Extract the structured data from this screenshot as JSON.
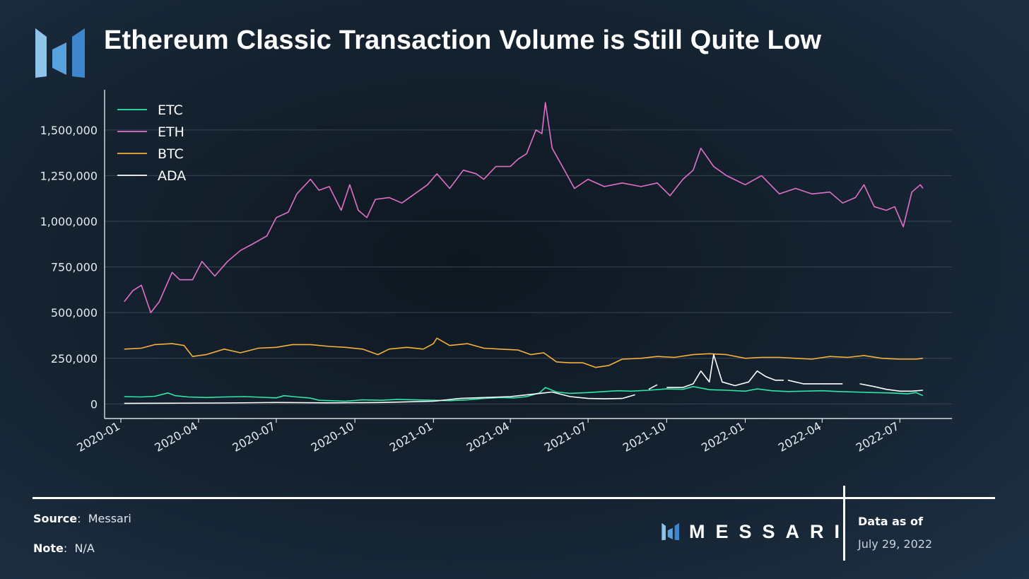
{
  "header": {
    "title": "Ethereum Classic Transaction Volume is Still Quite Low"
  },
  "chart_data": {
    "type": "line",
    "title": "Ethereum Classic Transaction Volume is Still Quite Low",
    "xlabel": "",
    "ylabel": "",
    "ylim": [
      -80000,
      1720000
    ],
    "xlim": [
      "2019-12-13",
      "2022-08-31"
    ],
    "grid": "horizontal",
    "legend_position": "top-left",
    "x_tick_labels": [
      "2020-01",
      "2020-04",
      "2020-07",
      "2020-10",
      "2021-01",
      "2021-04",
      "2021-07",
      "2021-10",
      "2022-01",
      "2022-04",
      "2022-07"
    ],
    "y_tick_values": [
      0,
      250000,
      500000,
      750000,
      1000000,
      1250000,
      1500000
    ],
    "y_tick_labels": [
      "0",
      "250,000",
      "500,000",
      "750,000",
      "1,000,000",
      "1,250,000",
      "1,500,000"
    ],
    "series": [
      {
        "name": "ETC",
        "color": "#2ee8a8",
        "x": [
          "2020-01-05",
          "2020-01-25",
          "2020-02-10",
          "2020-02-25",
          "2020-03-05",
          "2020-03-20",
          "2020-04-10",
          "2020-05-01",
          "2020-05-25",
          "2020-06-15",
          "2020-07-01",
          "2020-07-10",
          "2020-07-25",
          "2020-08-10",
          "2020-08-20",
          "2020-09-01",
          "2020-09-20",
          "2020-10-10",
          "2020-11-01",
          "2020-11-20",
          "2020-12-10",
          "2021-01-01",
          "2021-01-20",
          "2021-02-10",
          "2021-03-01",
          "2021-03-20",
          "2021-04-05",
          "2021-04-20",
          "2021-05-05",
          "2021-05-12",
          "2021-05-25",
          "2021-06-10",
          "2021-07-01",
          "2021-07-20",
          "2021-08-05",
          "2021-08-20",
          "2021-09-10",
          "2021-10-01",
          "2021-10-20",
          "2021-11-01",
          "2021-11-20",
          "2021-12-10",
          "2022-01-01",
          "2022-01-15",
          "2022-02-01",
          "2022-02-20",
          "2022-03-10",
          "2022-04-01",
          "2022-04-20",
          "2022-05-10",
          "2022-06-01",
          "2022-06-20",
          "2022-07-10",
          "2022-07-20",
          "2022-07-28"
        ],
        "values": [
          40000,
          38000,
          42000,
          60000,
          45000,
          38000,
          35000,
          38000,
          40000,
          36000,
          33000,
          45000,
          38000,
          32000,
          20000,
          18000,
          15000,
          22000,
          20000,
          25000,
          22000,
          20000,
          18000,
          22000,
          30000,
          35000,
          33000,
          40000,
          60000,
          90000,
          65000,
          58000,
          62000,
          68000,
          72000,
          70000,
          75000,
          82000,
          80000,
          95000,
          78000,
          75000,
          70000,
          82000,
          72000,
          68000,
          70000,
          72000,
          68000,
          65000,
          62000,
          60000,
          55000,
          62000,
          45000
        ]
      },
      {
        "name": "ETH",
        "color": "#e070c8",
        "x": [
          "2020-01-05",
          "2020-01-15",
          "2020-01-25",
          "2020-02-05",
          "2020-02-15",
          "2020-03-01",
          "2020-03-10",
          "2020-03-25",
          "2020-04-05",
          "2020-04-20",
          "2020-05-05",
          "2020-05-20",
          "2020-06-05",
          "2020-06-20",
          "2020-07-01",
          "2020-07-15",
          "2020-07-25",
          "2020-08-10",
          "2020-08-20",
          "2020-09-01",
          "2020-09-15",
          "2020-09-25",
          "2020-10-05",
          "2020-10-15",
          "2020-10-25",
          "2020-11-10",
          "2020-11-25",
          "2020-12-10",
          "2020-12-25",
          "2021-01-05",
          "2021-01-20",
          "2021-02-05",
          "2021-02-20",
          "2021-03-01",
          "2021-03-15",
          "2021-04-01",
          "2021-04-10",
          "2021-04-20",
          "2021-05-01",
          "2021-05-08",
          "2021-05-12",
          "2021-05-20",
          "2021-06-01",
          "2021-06-15",
          "2021-07-01",
          "2021-07-20",
          "2021-08-10",
          "2021-09-01",
          "2021-09-20",
          "2021-10-05",
          "2021-10-20",
          "2021-11-01",
          "2021-11-10",
          "2021-11-25",
          "2021-12-10",
          "2022-01-01",
          "2022-01-20",
          "2022-02-10",
          "2022-03-01",
          "2022-03-20",
          "2022-04-10",
          "2022-04-25",
          "2022-05-10",
          "2022-05-20",
          "2022-06-01",
          "2022-06-15",
          "2022-06-25",
          "2022-07-05",
          "2022-07-15",
          "2022-07-25",
          "2022-07-28"
        ],
        "values": [
          560000,
          620000,
          650000,
          500000,
          560000,
          720000,
          680000,
          680000,
          780000,
          700000,
          780000,
          840000,
          880000,
          920000,
          1020000,
          1050000,
          1150000,
          1230000,
          1170000,
          1190000,
          1060000,
          1200000,
          1060000,
          1020000,
          1120000,
          1130000,
          1100000,
          1150000,
          1200000,
          1260000,
          1180000,
          1280000,
          1260000,
          1230000,
          1300000,
          1300000,
          1340000,
          1370000,
          1500000,
          1480000,
          1650000,
          1400000,
          1300000,
          1180000,
          1230000,
          1190000,
          1210000,
          1190000,
          1210000,
          1140000,
          1230000,
          1280000,
          1400000,
          1300000,
          1250000,
          1200000,
          1250000,
          1150000,
          1180000,
          1150000,
          1160000,
          1100000,
          1130000,
          1200000,
          1080000,
          1060000,
          1080000,
          970000,
          1160000,
          1200000,
          1180000
        ]
      },
      {
        "name": "BTC",
        "color": "#f6b13a",
        "x": [
          "2020-01-05",
          "2020-01-25",
          "2020-02-10",
          "2020-03-01",
          "2020-03-15",
          "2020-03-25",
          "2020-04-10",
          "2020-05-01",
          "2020-05-20",
          "2020-06-10",
          "2020-07-01",
          "2020-07-20",
          "2020-08-10",
          "2020-09-01",
          "2020-09-20",
          "2020-10-10",
          "2020-10-28",
          "2020-11-10",
          "2020-12-01",
          "2020-12-20",
          "2021-01-01",
          "2021-01-05",
          "2021-01-20",
          "2021-02-10",
          "2021-03-01",
          "2021-03-20",
          "2021-04-10",
          "2021-04-25",
          "2021-05-10",
          "2021-05-25",
          "2021-06-10",
          "2021-06-25",
          "2021-07-10",
          "2021-07-25",
          "2021-08-10",
          "2021-09-01",
          "2021-09-20",
          "2021-10-10",
          "2021-11-01",
          "2021-11-20",
          "2021-12-10",
          "2022-01-01",
          "2022-01-20",
          "2022-02-10",
          "2022-03-01",
          "2022-03-20",
          "2022-04-10",
          "2022-05-01",
          "2022-05-20",
          "2022-06-10",
          "2022-07-01",
          "2022-07-20",
          "2022-07-28"
        ],
        "values": [
          300000,
          305000,
          325000,
          330000,
          320000,
          260000,
          270000,
          300000,
          280000,
          305000,
          310000,
          325000,
          325000,
          315000,
          310000,
          300000,
          270000,
          300000,
          310000,
          300000,
          330000,
          360000,
          320000,
          330000,
          305000,
          300000,
          295000,
          270000,
          280000,
          230000,
          225000,
          225000,
          200000,
          210000,
          245000,
          250000,
          260000,
          255000,
          270000,
          275000,
          270000,
          250000,
          255000,
          255000,
          250000,
          245000,
          260000,
          255000,
          265000,
          250000,
          245000,
          245000,
          250000
        ]
      },
      {
        "name": "ADA",
        "color": "#ffffff",
        "x": [
          "2020-01-05",
          "2020-03-01",
          "2020-05-01",
          "2020-07-01",
          "2020-09-01",
          "2020-11-01",
          "2021-01-01",
          "2021-02-01",
          "2021-03-01",
          "2021-04-01",
          "2021-05-01",
          "2021-05-20",
          "2021-06-10",
          "2021-07-01",
          "2021-07-20",
          "2021-08-10",
          "2021-08-25",
          null,
          "2021-09-10",
          "2021-09-20",
          null,
          "2021-10-01",
          "2021-10-20",
          "2021-11-01",
          "2021-11-10",
          "2021-11-20",
          "2021-11-25",
          "2021-12-05",
          "2021-12-20",
          "2022-01-05",
          "2022-01-15",
          "2022-01-25",
          "2022-02-05",
          "2022-02-15",
          null,
          "2022-02-20",
          "2022-03-10",
          "2022-04-01",
          "2022-04-15",
          "2022-04-25",
          null,
          "2022-05-15",
          "2022-06-01",
          "2022-06-15",
          "2022-07-01",
          "2022-07-15",
          "2022-07-28"
        ],
        "values": [
          3000,
          4000,
          5000,
          8000,
          6000,
          8000,
          15000,
          30000,
          35000,
          40000,
          55000,
          65000,
          40000,
          30000,
          28000,
          30000,
          50000,
          null,
          80000,
          105000,
          null,
          90000,
          90000,
          110000,
          180000,
          120000,
          270000,
          120000,
          100000,
          120000,
          180000,
          150000,
          130000,
          130000,
          null,
          130000,
          110000,
          110000,
          110000,
          110000,
          null,
          110000,
          95000,
          80000,
          70000,
          70000,
          75000
        ]
      }
    ]
  },
  "footer": {
    "source_label": "Source",
    "source_value": "Messari",
    "note_label": "Note",
    "note_value": "N/A",
    "brand_text": "MESSARI",
    "data_as_of_label": "Data as of",
    "data_as_of_date": "July 29, 2022"
  },
  "colors": {
    "axis": "#ffffff",
    "grid": "#3a4654",
    "tick_text": "#e6eaf0",
    "logo_light": "#8ec3ec",
    "logo_dark": "#3f86cf"
  },
  "icons": {
    "logo": "messari-logo-icon"
  }
}
